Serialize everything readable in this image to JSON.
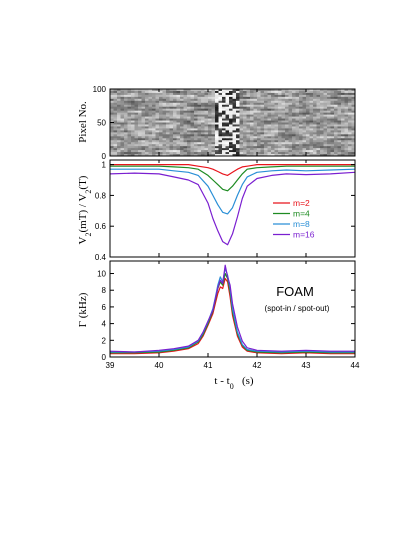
{
  "chart_data": [
    {
      "type": "heatmap",
      "panel": "top",
      "ylabel": "Pixel No.",
      "ylim": [
        0,
        100
      ],
      "yticks": [
        "0",
        "50",
        "100"
      ],
      "description_values": {
        "rows": 100,
        "colormap": "grayscale",
        "disturbance_center_x": 41.4
      }
    },
    {
      "type": "line",
      "panel": "middle",
      "ylabel": "V_2(mT) / V_2(T)",
      "ylabel_parts": [
        "V",
        "2",
        "(mT) / V",
        "2",
        "(T)"
      ],
      "ylim": [
        0.4,
        1.03
      ],
      "yticks": [
        "0.4",
        "0.6",
        "0.8",
        "1"
      ],
      "ytick_values": [
        0.4,
        0.6,
        0.8,
        1.0
      ],
      "x": [
        39.0,
        39.5,
        40.0,
        40.3,
        40.6,
        40.8,
        41.0,
        41.1,
        41.2,
        41.3,
        41.4,
        41.5,
        41.6,
        41.7,
        41.8,
        42.0,
        42.3,
        42.6,
        43.0,
        43.5,
        44.0
      ],
      "series": [
        {
          "name": "m=2",
          "color": "#e8141c",
          "values": [
            1.0,
            1.0,
            1.0,
            1.0,
            1.0,
            0.99,
            0.98,
            0.97,
            0.955,
            0.94,
            0.93,
            0.95,
            0.97,
            0.985,
            0.99,
            1.0,
            1.0,
            1.0,
            1.0,
            1.0,
            1.0
          ]
        },
        {
          "name": "m=4",
          "color": "#1e8b22",
          "values": [
            0.99,
            0.99,
            0.99,
            0.985,
            0.98,
            0.97,
            0.93,
            0.9,
            0.87,
            0.84,
            0.83,
            0.86,
            0.9,
            0.94,
            0.97,
            0.98,
            0.985,
            0.99,
            0.99,
            0.99,
            0.99
          ]
        },
        {
          "name": "m=8",
          "color": "#2a8fd6",
          "values": [
            0.97,
            0.97,
            0.97,
            0.96,
            0.95,
            0.93,
            0.86,
            0.8,
            0.74,
            0.69,
            0.68,
            0.72,
            0.8,
            0.87,
            0.92,
            0.95,
            0.96,
            0.965,
            0.96,
            0.965,
            0.97
          ]
        },
        {
          "name": "m=16",
          "color": "#7a1fd0",
          "values": [
            0.94,
            0.945,
            0.94,
            0.92,
            0.9,
            0.87,
            0.75,
            0.65,
            0.57,
            0.5,
            0.48,
            0.55,
            0.66,
            0.78,
            0.86,
            0.91,
            0.93,
            0.94,
            0.935,
            0.94,
            0.95
          ]
        }
      ],
      "legend": {
        "placement": "right"
      }
    },
    {
      "type": "line",
      "panel": "bottom",
      "ylabel": "Γ (kHz)",
      "ylim": [
        0,
        11.5
      ],
      "yticks": [
        "0",
        "2",
        "4",
        "6",
        "8",
        "10"
      ],
      "ytick_values": [
        0,
        2,
        4,
        6,
        8,
        10
      ],
      "xlabel": "t - t_0 (s)",
      "xlabel_parts": [
        "t - t",
        "0",
        "   (s)"
      ],
      "xlim": [
        39,
        44
      ],
      "xticks": [
        "39",
        "40",
        "41",
        "42",
        "43",
        "44"
      ],
      "xtick_values": [
        39,
        40,
        41,
        42,
        43,
        44
      ],
      "annotation_title": "FOAM",
      "annotation_sub": "(spot-in / spot-out)",
      "x": [
        39.0,
        39.5,
        40.0,
        40.3,
        40.6,
        40.8,
        40.9,
        41.0,
        41.1,
        41.15,
        41.2,
        41.25,
        41.3,
        41.35,
        41.4,
        41.45,
        41.5,
        41.6,
        41.7,
        41.8,
        42.0,
        42.5,
        43.0,
        43.5,
        44.0
      ],
      "series": [
        {
          "name": "m=2",
          "color": "#e8141c",
          "values": [
            0.4,
            0.4,
            0.5,
            0.7,
            1.0,
            1.6,
            2.5,
            3.8,
            5.2,
            6.4,
            7.6,
            8.4,
            8.2,
            9.4,
            9.0,
            7.2,
            5.0,
            2.5,
            1.2,
            0.7,
            0.5,
            0.4,
            0.5,
            0.4,
            0.4
          ]
        },
        {
          "name": "m=4",
          "color": "#1e8b22",
          "values": [
            0.5,
            0.5,
            0.6,
            0.8,
            1.1,
            1.8,
            2.7,
            4.0,
            5.5,
            6.8,
            8.2,
            9.0,
            8.6,
            10.0,
            9.4,
            7.8,
            5.4,
            2.8,
            1.4,
            0.8,
            0.6,
            0.5,
            0.6,
            0.5,
            0.5
          ]
        },
        {
          "name": "m=8",
          "color": "#2a8fd6",
          "values": [
            0.6,
            0.6,
            0.7,
            0.9,
            1.2,
            1.9,
            2.9,
            4.2,
            5.8,
            7.1,
            8.6,
            9.6,
            9.0,
            10.6,
            9.8,
            8.2,
            5.8,
            3.0,
            1.5,
            0.9,
            0.7,
            0.6,
            0.7,
            0.6,
            0.6
          ]
        },
        {
          "name": "m=16",
          "color": "#7a1fd0",
          "values": [
            0.7,
            0.6,
            0.8,
            1.0,
            1.3,
            2.0,
            3.0,
            4.3,
            5.6,
            7.0,
            8.3,
            9.2,
            8.8,
            11.0,
            9.6,
            8.6,
            6.4,
            3.6,
            1.9,
            1.1,
            0.8,
            0.7,
            0.8,
            0.7,
            0.7
          ]
        }
      ]
    }
  ]
}
